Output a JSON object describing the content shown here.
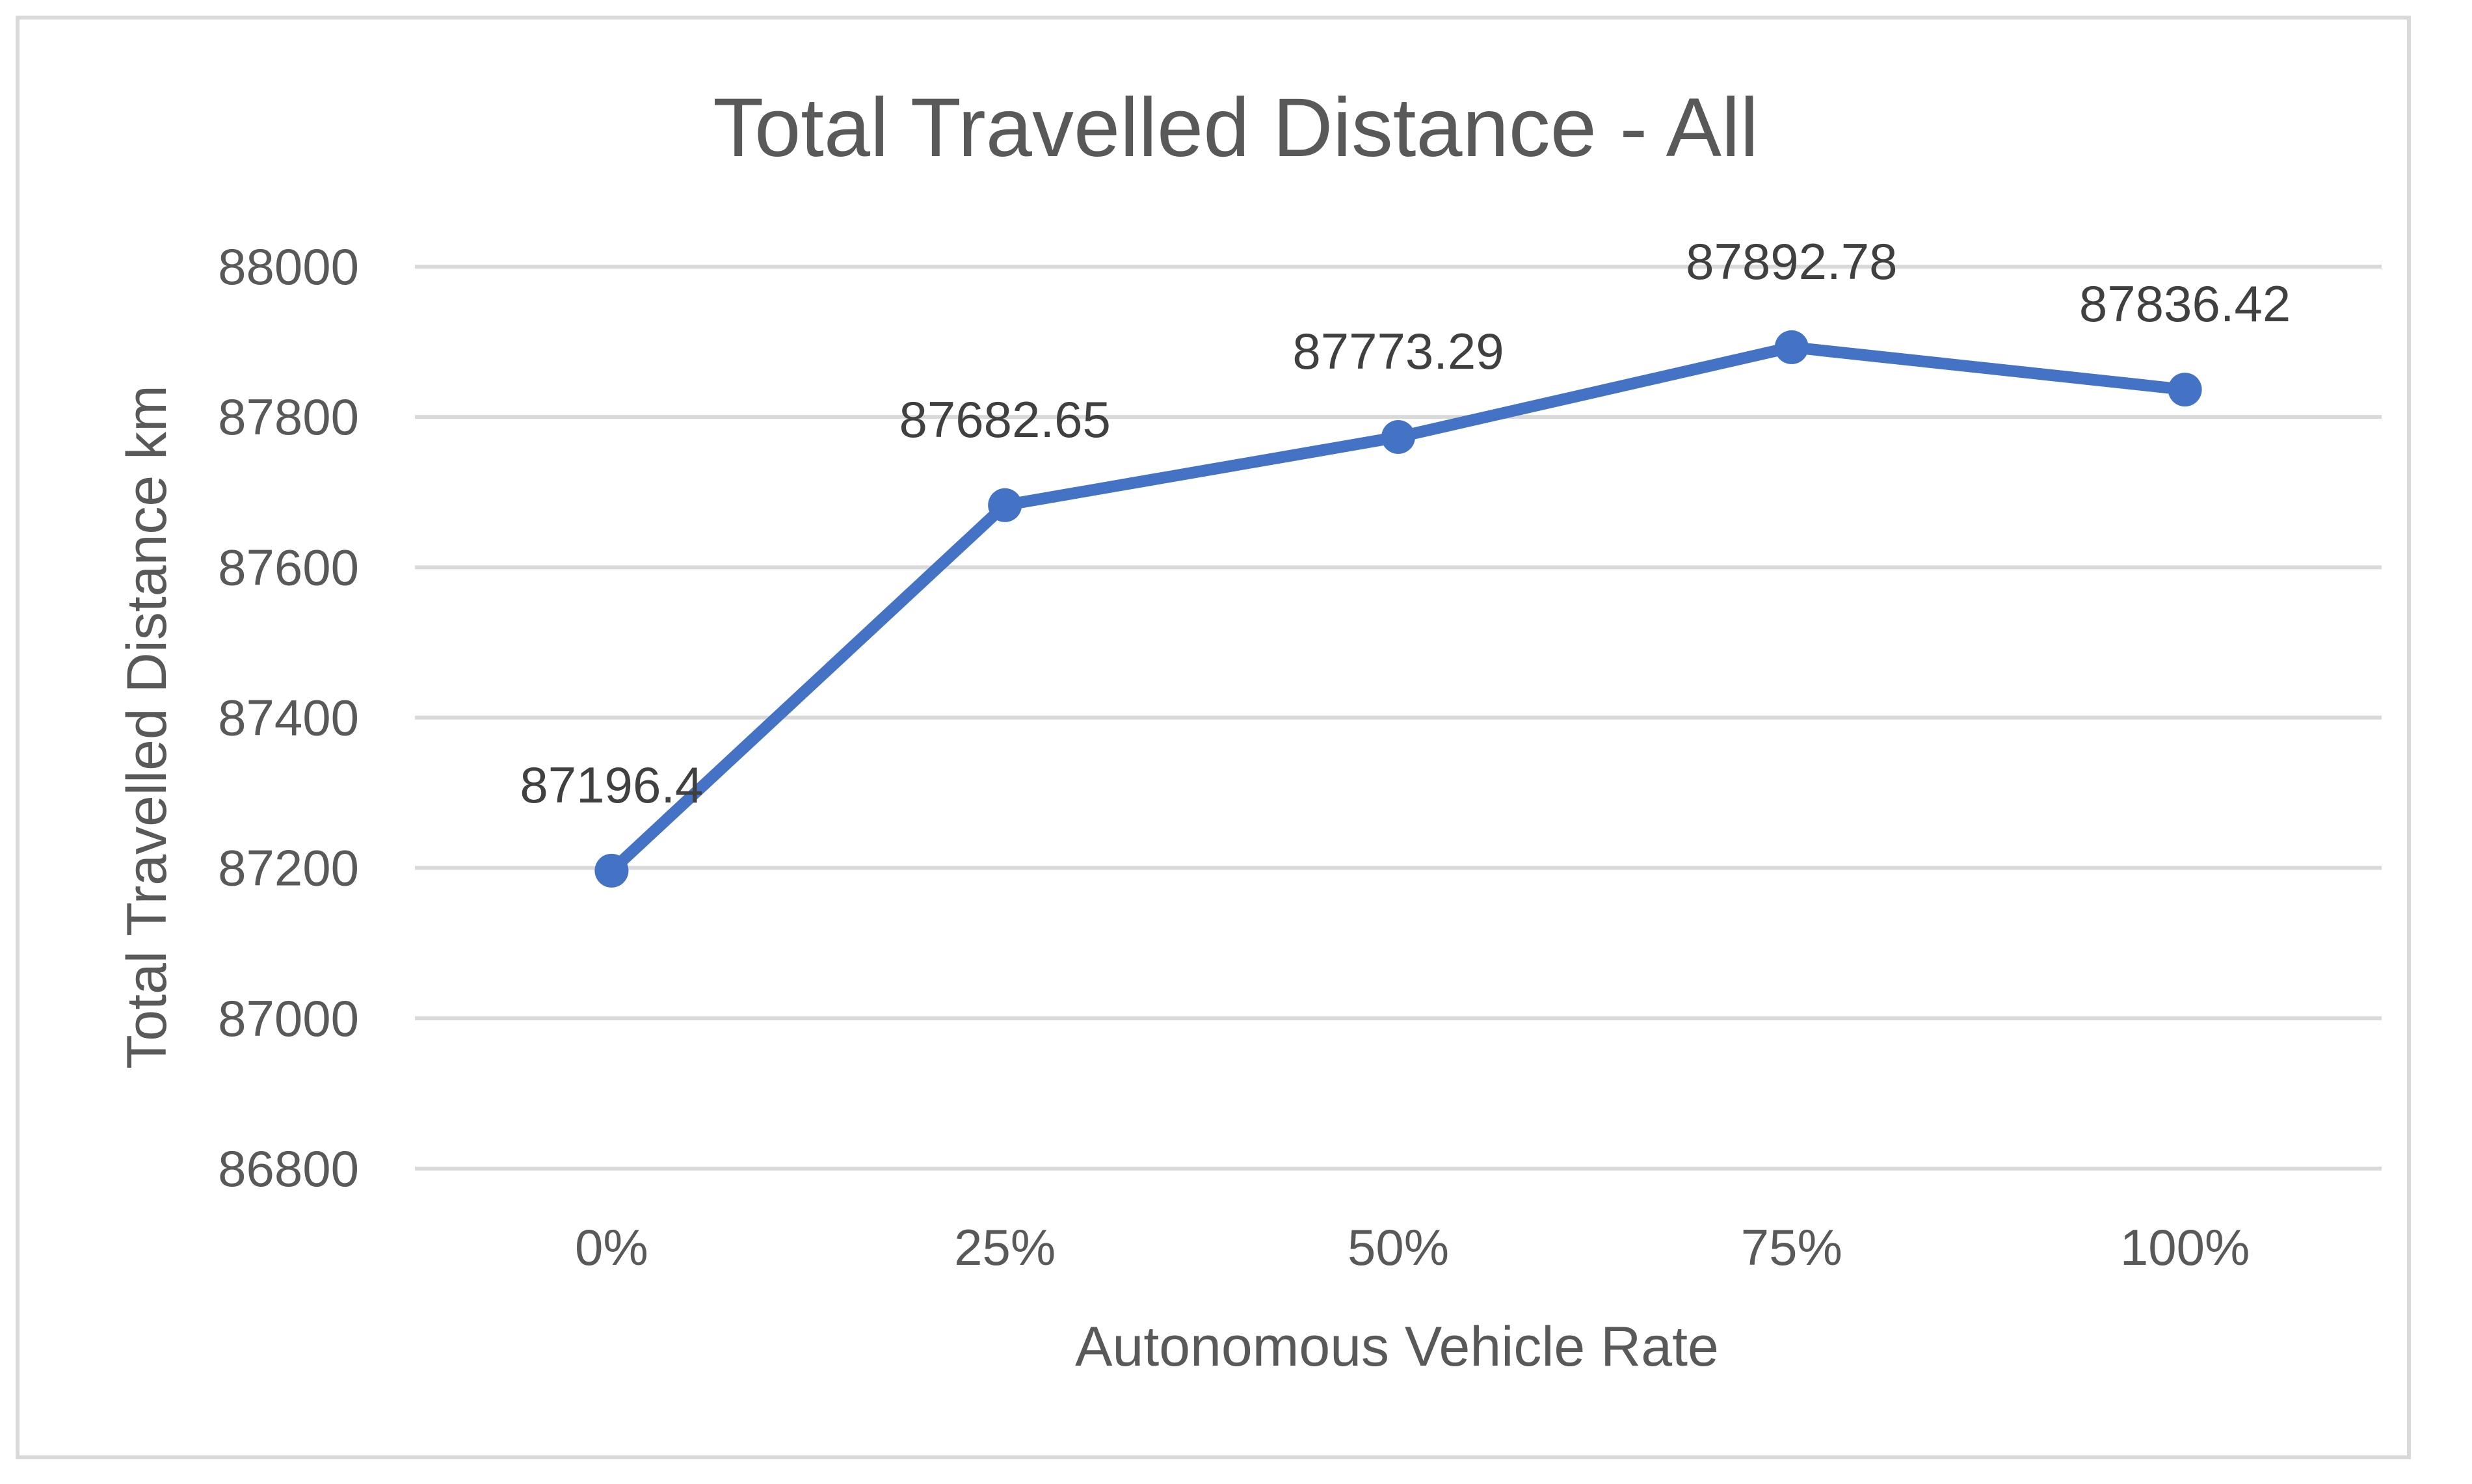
{
  "chart_data": {
    "type": "line",
    "title": "Total Travelled Distance - All",
    "xlabel": "Autonomous Vehicle Rate",
    "ylabel": "Total Travelled Distance  km",
    "categories": [
      "0%",
      "25%",
      "50%",
      "75%",
      "100%"
    ],
    "series": [
      {
        "values": [
          87196.4,
          87682.65,
          87773.29,
          87892.78,
          87836.42
        ],
        "labels": [
          "87196.4",
          "87682.65",
          "87773.29",
          "87892.78",
          "87836.42"
        ],
        "color": "#4472c4"
      }
    ],
    "ylim": [
      86800,
      88000
    ],
    "yticks": [
      "86800",
      "87000",
      "87200",
      "87400",
      "87600",
      "87800",
      "88000"
    ],
    "grid": true,
    "legend": "none"
  }
}
